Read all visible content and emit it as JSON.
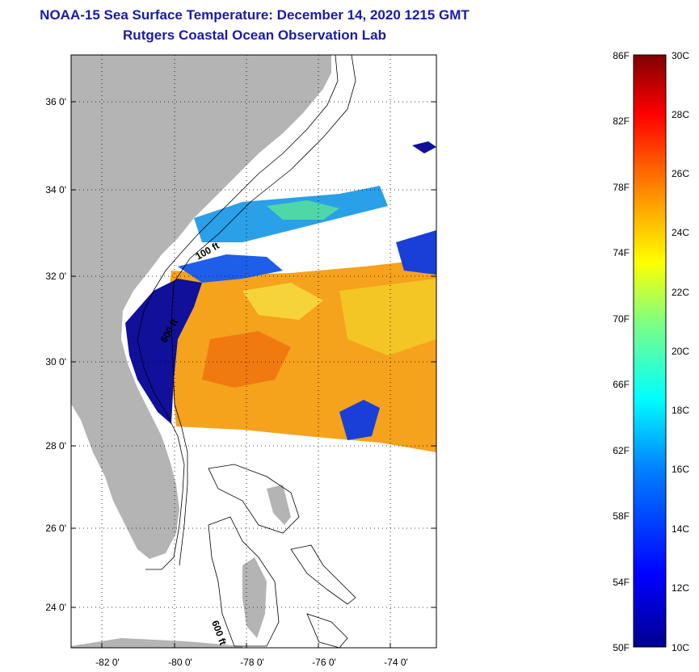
{
  "title": {
    "line1": "NOAA-15 Sea Surface Temperature:  December 14, 2020 1215 GMT",
    "line2": "Rutgers Coastal Ocean Observation Lab"
  },
  "map": {
    "lat_labels": [
      "36 0'",
      "34 0'",
      "32 0'",
      "30 0'",
      "28 0'",
      "26 0'",
      "24 0'"
    ],
    "lon_labels": [
      "-82 0'",
      "-80 0'",
      "-78 0'",
      "-76 0'",
      "-74 0'"
    ],
    "isobath_labels": [
      "100 ft",
      "600 ft",
      "600 ft"
    ],
    "colors": {
      "land": "#b4b4b4",
      "cloud": "#ffffff",
      "sst_warm": "#f5a21c",
      "sst_cold": "#10109a"
    }
  },
  "colorbar": {
    "fahrenheit_labels": [
      "86F",
      "82F",
      "78F",
      "74F",
      "70F",
      "66F",
      "62F",
      "58F",
      "54F",
      "50F"
    ],
    "celsius_labels": [
      "30C",
      "28C",
      "26C",
      "24C",
      "22C",
      "20C",
      "18C",
      "16C",
      "14C",
      "12C",
      "10C"
    ],
    "colors": [
      "#00008f",
      "#0000ff",
      "#0080ff",
      "#00ffff",
      "#80ff80",
      "#ffff00",
      "#ff8000",
      "#ff0000",
      "#800000"
    ]
  }
}
